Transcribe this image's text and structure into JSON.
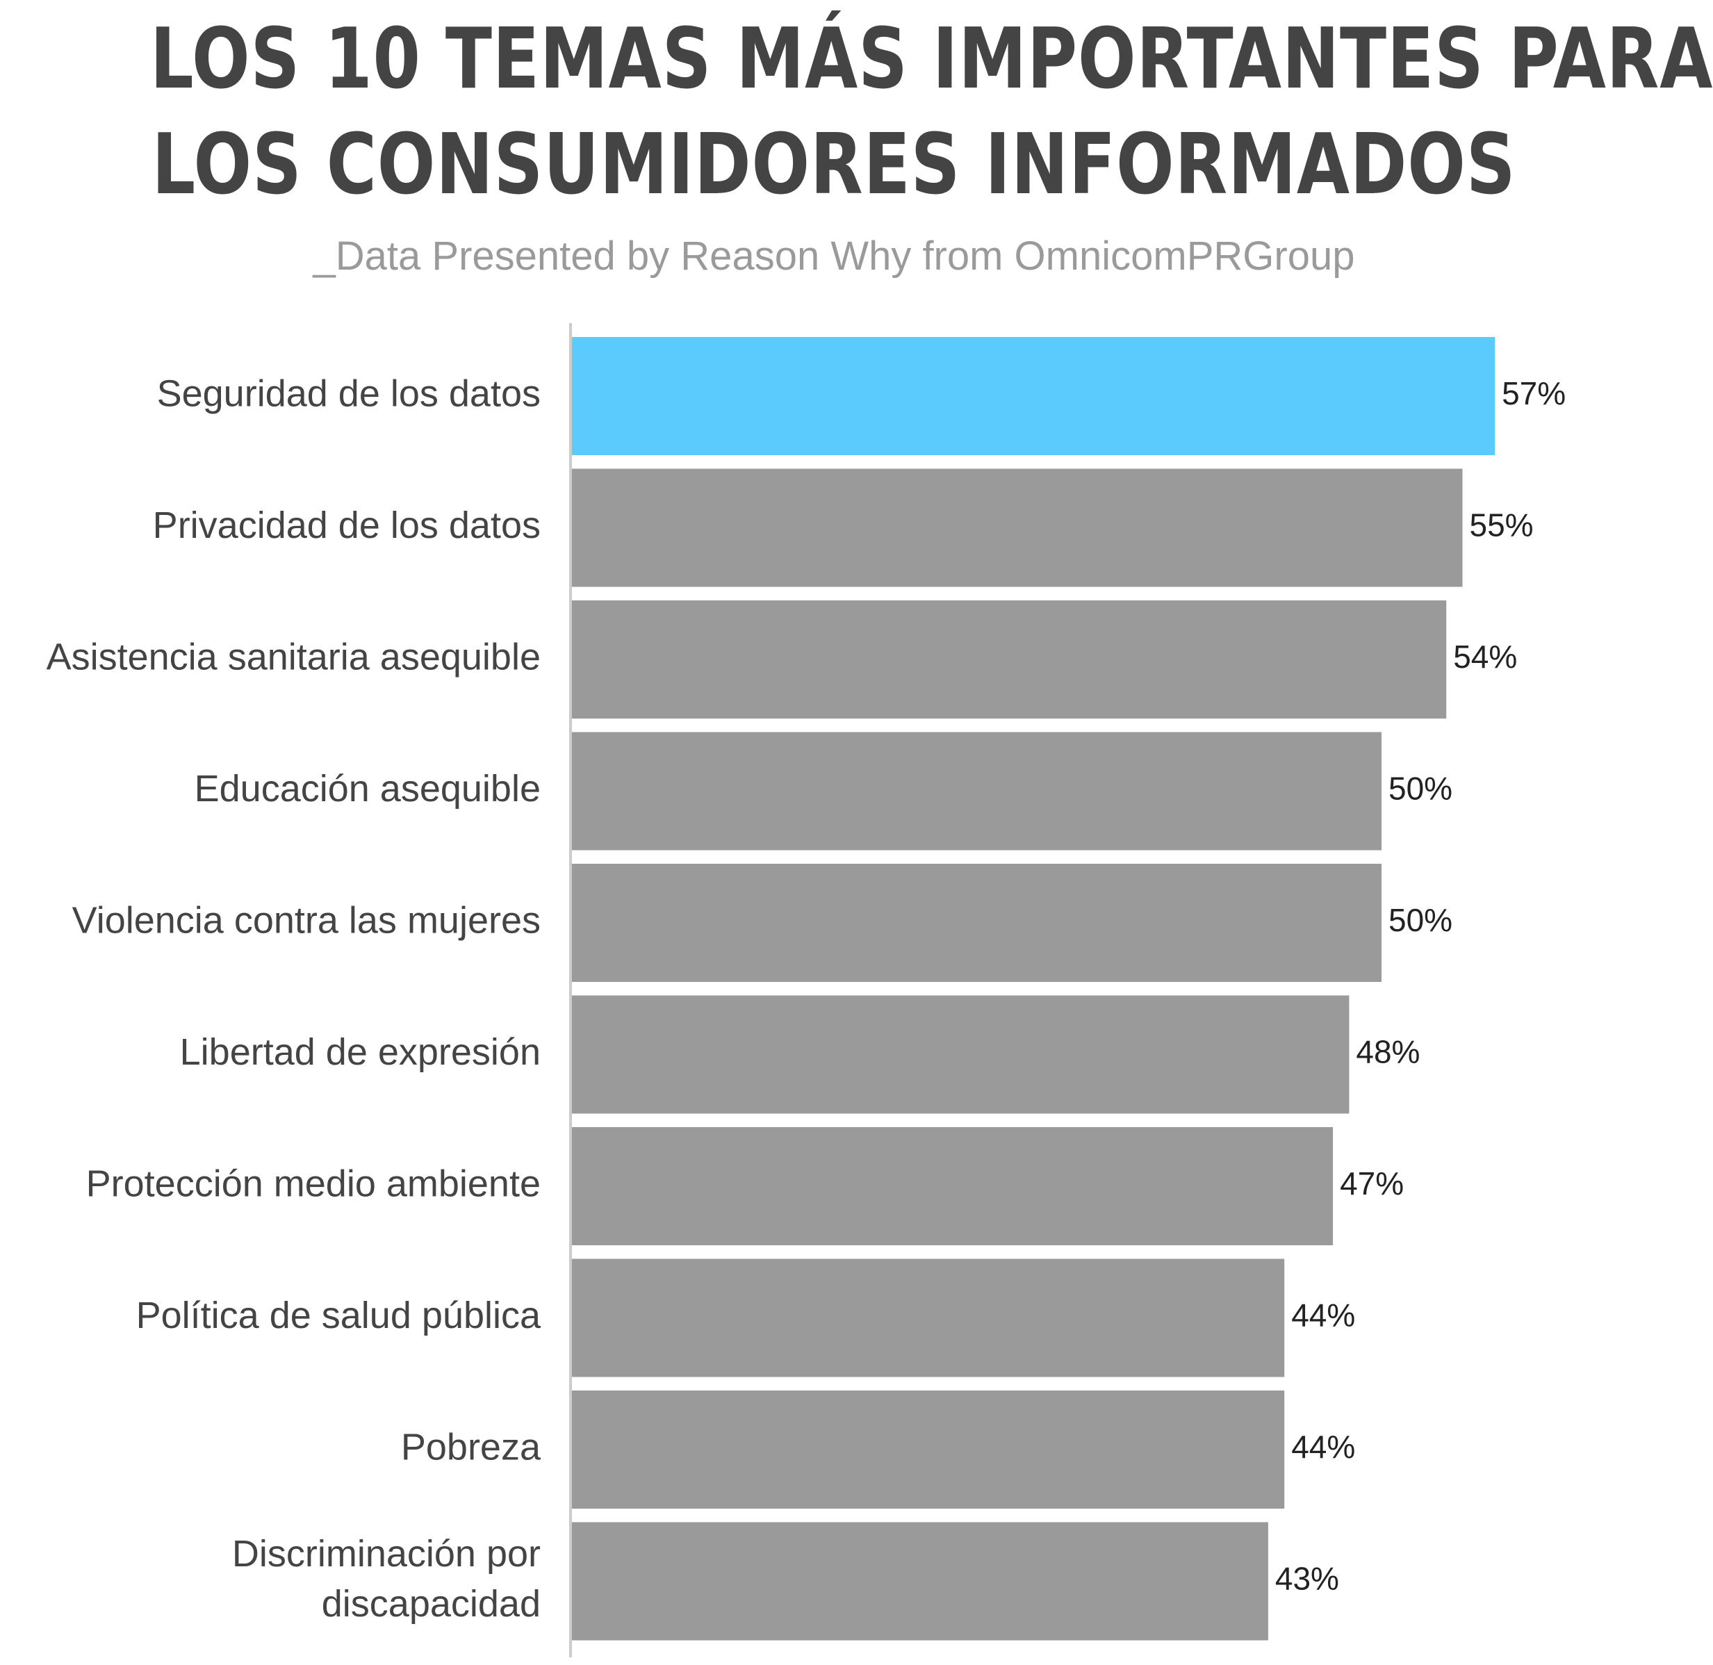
{
  "title_lines": [
    "LOS 10 TEMAS MÁS IMPORTANTES PARA",
    "LOS CONSUMIDORES INFORMADOS"
  ],
  "subtitle": "_Data Presented by Reason Why from OmnicomPRGroup",
  "chart_data": {
    "type": "bar",
    "orientation": "horizontal",
    "categories": [
      [
        "Seguridad de los datos"
      ],
      [
        "Privacidad de los datos"
      ],
      [
        "Asistencia sanitaria asequible"
      ],
      [
        "Educación asequible"
      ],
      [
        "Violencia contra las mujeres"
      ],
      [
        "Libertad de expresión"
      ],
      [
        "Protección medio ambiente"
      ],
      [
        "Política de salud pública"
      ],
      [
        "Pobreza"
      ],
      [
        "Discriminación por",
        "discapacidad"
      ]
    ],
    "values": [
      57,
      55,
      54,
      50,
      50,
      48,
      47,
      44,
      44,
      43
    ],
    "value_labels": [
      "57%",
      "55%",
      "54%",
      "50%",
      "50%",
      "48%",
      "47%",
      "44%",
      "44%",
      "43%"
    ],
    "highlight_index": 0,
    "colors": {
      "highlight": "#5ACBFC",
      "default": "#9A9A9A",
      "axis": "#cccccc",
      "label": "#444444",
      "value": "#222222"
    },
    "grid": false
  }
}
